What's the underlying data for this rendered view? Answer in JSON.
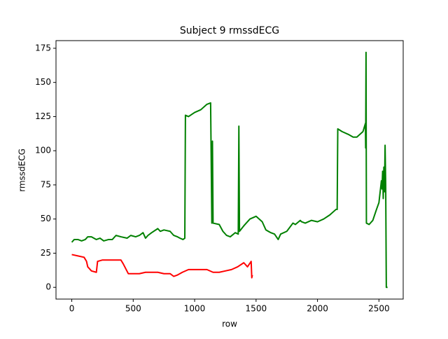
{
  "chart_data": {
    "type": "line",
    "title": "Subject 9 rmssdECG",
    "xlabel": "row",
    "ylabel": "rmssdECG",
    "xlim": [
      -128.45,
      2697.45
    ],
    "ylim": [
      -8.6,
      180.6
    ],
    "xticks": [
      0,
      500,
      1000,
      1500,
      2000,
      2500
    ],
    "yticks": [
      0,
      25,
      50,
      75,
      100,
      125,
      150,
      175
    ],
    "series": [
      {
        "color": "#008000",
        "x": [
          0,
          20,
          50,
          80,
          110,
          130,
          160,
          200,
          230,
          260,
          300,
          330,
          360,
          400,
          450,
          480,
          520,
          550,
          580,
          600,
          620,
          650,
          700,
          720,
          750,
          800,
          830,
          860,
          880,
          905,
          920,
          925,
          950,
          1000,
          1050,
          1100,
          1130,
          1140,
          1145,
          1150,
          1200,
          1230,
          1260,
          1290,
          1330,
          1355,
          1360,
          1365,
          1400,
          1450,
          1500,
          1550,
          1580,
          1620,
          1650,
          1680,
          1700,
          1750,
          1800,
          1820,
          1860,
          1870,
          1900,
          1950,
          2000,
          2050,
          2100,
          2150,
          2160,
          2165,
          2200,
          2250,
          2290,
          2320,
          2370,
          2390,
          2392,
          2395,
          2398,
          2420,
          2450,
          2480,
          2500,
          2510,
          2520,
          2525,
          2530,
          2535,
          2540,
          2545,
          2550,
          2555,
          2560,
          2570
        ],
        "values": [
          33,
          35,
          35,
          34,
          35,
          37,
          37,
          35,
          36,
          34,
          35,
          35,
          38,
          37,
          36,
          38,
          37,
          38,
          40,
          36,
          38,
          40,
          43,
          41,
          42,
          41,
          38,
          37,
          36,
          35,
          36,
          126,
          125,
          128,
          130,
          134,
          135,
          47,
          107,
          47,
          46,
          41,
          38,
          37,
          40,
          39,
          118,
          41,
          45,
          50,
          52,
          48,
          42,
          40,
          39,
          35,
          39,
          41,
          47,
          46,
          49,
          48,
          47,
          49,
          48,
          50,
          53,
          57,
          57,
          116,
          114,
          112,
          110,
          110,
          114,
          120,
          102,
          172,
          47,
          46,
          49,
          57,
          62,
          70,
          78,
          72,
          85,
          65,
          88,
          70,
          104,
          75,
          0,
          0
        ]
      },
      {
        "color": "#ff0000",
        "x": [
          0,
          50,
          100,
          120,
          130,
          160,
          200,
          210,
          250,
          300,
          350,
          400,
          420,
          460,
          500,
          550,
          600,
          650,
          700,
          750,
          800,
          830,
          860,
          900,
          950,
          1000,
          1050,
          1100,
          1150,
          1200,
          1250,
          1300,
          1350,
          1400,
          1430,
          1460,
          1465,
          1470
        ],
        "values": [
          24,
          23,
          22,
          19,
          15,
          12,
          11,
          19,
          20,
          20,
          20,
          20,
          17,
          10,
          10,
          10,
          11,
          11,
          11,
          10,
          10,
          8,
          9,
          11,
          13,
          13,
          13,
          13,
          11,
          11,
          12,
          13,
          15,
          18,
          15,
          19,
          7,
          9
        ]
      }
    ]
  }
}
